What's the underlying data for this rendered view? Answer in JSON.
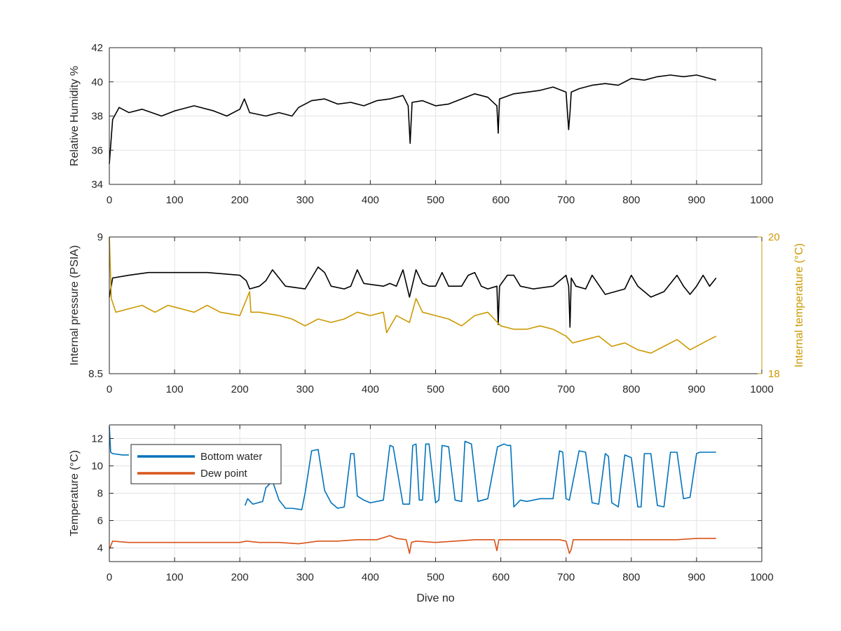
{
  "chart_data": [
    {
      "type": "line",
      "title": "",
      "xlabel": "",
      "ylabel": "Relative Humidity %",
      "xlim": [
        0,
        1000
      ],
      "ylim": [
        34,
        42
      ],
      "xticks": [
        0,
        100,
        200,
        300,
        400,
        500,
        600,
        700,
        800,
        900,
        1000
      ],
      "yticks": [
        34,
        36,
        38,
        40,
        42
      ],
      "xtick_labels": [
        "0",
        "100",
        "200",
        "300",
        "400",
        "500",
        "600",
        "700",
        "800",
        "900",
        "1000"
      ],
      "ytick_labels": [
        "34",
        "36",
        "38",
        "40",
        "42"
      ],
      "grid": true,
      "series": [
        {
          "color": "#000000",
          "x": [
            0,
            5,
            15,
            30,
            50,
            80,
            100,
            130,
            160,
            180,
            200,
            207,
            215,
            240,
            260,
            280,
            290,
            310,
            330,
            350,
            370,
            390,
            410,
            430,
            450,
            458,
            461,
            464,
            480,
            500,
            520,
            540,
            560,
            580,
            594,
            596,
            598,
            620,
            640,
            660,
            680,
            700,
            704,
            706,
            708,
            720,
            740,
            760,
            780,
            800,
            820,
            840,
            860,
            880,
            900,
            920,
            930
          ],
          "y": [
            35.2,
            37.8,
            38.5,
            38.2,
            38.4,
            38.0,
            38.3,
            38.6,
            38.3,
            38.0,
            38.4,
            39.0,
            38.2,
            38.0,
            38.2,
            38.0,
            38.5,
            38.9,
            39.0,
            38.7,
            38.8,
            38.6,
            38.9,
            39.0,
            39.2,
            38.6,
            36.4,
            38.8,
            38.9,
            38.6,
            38.7,
            39.0,
            39.3,
            39.1,
            38.6,
            37.0,
            39.0,
            39.3,
            39.4,
            39.5,
            39.7,
            39.4,
            37.2,
            38.2,
            39.4,
            39.6,
            39.8,
            39.9,
            39.8,
            40.2,
            40.1,
            40.3,
            40.4,
            40.3,
            40.4,
            40.2,
            40.1
          ]
        }
      ]
    },
    {
      "type": "line",
      "title": "",
      "xlabel": "",
      "ylabel": "Internal pressure (PSIA)",
      "ylabel_right": "Internal temperature (°C)",
      "xlim": [
        0,
        1000
      ],
      "ylim": [
        8.5,
        9
      ],
      "ylim_right": [
        18,
        20
      ],
      "xticks": [
        0,
        100,
        200,
        300,
        400,
        500,
        600,
        700,
        800,
        900,
        1000
      ],
      "yticks": [
        8.5,
        9
      ],
      "yticks_right": [
        18,
        20
      ],
      "xtick_labels": [
        "0",
        "100",
        "200",
        "300",
        "400",
        "500",
        "600",
        "700",
        "800",
        "900",
        "1000"
      ],
      "ytick_labels": [
        "8.5",
        "9"
      ],
      "ytick_labels_right": [
        "18",
        "20"
      ],
      "grid": true,
      "series": [
        {
          "axis": "left",
          "color": "#000000",
          "x": [
            0,
            5,
            30,
            60,
            100,
            150,
            200,
            210,
            215,
            230,
            240,
            250,
            260,
            270,
            300,
            310,
            320,
            330,
            340,
            360,
            370,
            380,
            390,
            420,
            430,
            440,
            450,
            460,
            470,
            480,
            490,
            500,
            510,
            520,
            540,
            550,
            560,
            570,
            580,
            594,
            596,
            598,
            610,
            620,
            630,
            650,
            680,
            700,
            704,
            706,
            708,
            715,
            730,
            740,
            760,
            790,
            800,
            810,
            830,
            840,
            850,
            870,
            880,
            890,
            900,
            910,
            920,
            930
          ],
          "y": [
            8.78,
            8.85,
            8.86,
            8.87,
            8.87,
            8.87,
            8.86,
            8.84,
            8.81,
            8.82,
            8.84,
            8.88,
            8.85,
            8.82,
            8.81,
            8.85,
            8.89,
            8.87,
            8.82,
            8.81,
            8.82,
            8.88,
            8.83,
            8.82,
            8.83,
            8.82,
            8.88,
            8.78,
            8.88,
            8.83,
            8.82,
            8.82,
            8.87,
            8.82,
            8.82,
            8.86,
            8.87,
            8.82,
            8.81,
            8.82,
            8.68,
            8.82,
            8.86,
            8.86,
            8.82,
            8.81,
            8.82,
            8.86,
            8.82,
            8.67,
            8.85,
            8.82,
            8.81,
            8.86,
            8.79,
            8.81,
            8.86,
            8.82,
            8.78,
            8.79,
            8.8,
            8.86,
            8.82,
            8.79,
            8.82,
            8.86,
            8.82,
            8.85
          ]
        },
        {
          "axis": "right",
          "color": "#CC9900",
          "x": [
            0,
            3,
            10,
            30,
            50,
            70,
            90,
            110,
            130,
            150,
            170,
            200,
            215,
            217,
            230,
            260,
            280,
            300,
            320,
            340,
            360,
            380,
            400,
            420,
            425,
            440,
            460,
            470,
            480,
            500,
            520,
            540,
            560,
            580,
            600,
            620,
            640,
            660,
            680,
            700,
            710,
            730,
            750,
            770,
            790,
            810,
            830,
            850,
            870,
            890,
            910,
            930
          ],
          "y": [
            20.0,
            19.1,
            18.9,
            18.95,
            19.0,
            18.9,
            19.0,
            18.95,
            18.9,
            19.0,
            18.9,
            18.85,
            19.2,
            18.9,
            18.9,
            18.85,
            18.8,
            18.7,
            18.8,
            18.75,
            18.8,
            18.9,
            18.85,
            18.9,
            18.6,
            18.85,
            18.75,
            19.1,
            18.9,
            18.85,
            18.8,
            18.7,
            18.85,
            18.9,
            18.7,
            18.65,
            18.65,
            18.7,
            18.65,
            18.55,
            18.45,
            18.5,
            18.55,
            18.4,
            18.45,
            18.35,
            18.3,
            18.4,
            18.5,
            18.35,
            18.45,
            18.55
          ]
        }
      ]
    },
    {
      "type": "line",
      "title": "",
      "xlabel": "Dive no",
      "ylabel": "Temperature (°C)",
      "xlim": [
        0,
        1000
      ],
      "ylim": [
        3,
        13
      ],
      "xticks": [
        0,
        100,
        200,
        300,
        400,
        500,
        600,
        700,
        800,
        900,
        1000
      ],
      "yticks": [
        4,
        6,
        8,
        10,
        12
      ],
      "xtick_labels": [
        "0",
        "100",
        "200",
        "300",
        "400",
        "500",
        "600",
        "700",
        "800",
        "900",
        "1000"
      ],
      "ytick_labels": [
        "4",
        "6",
        "8",
        "10",
        "12"
      ],
      "grid": true,
      "legend": "upper-left",
      "series": [
        {
          "name": "Bottom water",
          "color": "#0072BD",
          "x": [
            0,
            2,
            5,
            20,
            30,
            null,
            208,
            212,
            220,
            235,
            240,
            250,
            260,
            270,
            280,
            295,
            300,
            310,
            320,
            330,
            340,
            350,
            360,
            370,
            375,
            380,
            390,
            400,
            420,
            430,
            435,
            450,
            460,
            465,
            470,
            475,
            480,
            485,
            490,
            500,
            505,
            510,
            520,
            530,
            540,
            545,
            555,
            565,
            580,
            595,
            605,
            610,
            615,
            620,
            630,
            640,
            660,
            680,
            690,
            695,
            700,
            705,
            720,
            730,
            740,
            750,
            760,
            765,
            770,
            780,
            790,
            800,
            810,
            815,
            820,
            830,
            840,
            850,
            860,
            870,
            880,
            890,
            900,
            905,
            910,
            920,
            930
          ],
          "y": [
            12.9,
            11.0,
            10.9,
            10.8,
            10.8,
            null,
            7.1,
            7.6,
            7.2,
            7.4,
            8.4,
            8.9,
            7.5,
            6.9,
            6.9,
            6.8,
            8.0,
            11.1,
            11.2,
            8.2,
            7.3,
            6.9,
            7.0,
            10.9,
            10.9,
            7.8,
            7.5,
            7.3,
            7.5,
            11.5,
            11.4,
            7.2,
            7.2,
            11.5,
            11.6,
            7.5,
            7.5,
            11.6,
            11.6,
            7.3,
            7.5,
            11.5,
            11.4,
            7.5,
            7.4,
            11.8,
            11.6,
            7.4,
            7.6,
            11.4,
            11.6,
            11.5,
            11.5,
            7.0,
            7.5,
            7.4,
            7.6,
            7.6,
            11.1,
            11.0,
            7.6,
            7.5,
            11.1,
            11.0,
            7.3,
            7.2,
            10.9,
            10.7,
            7.3,
            7.0,
            10.8,
            10.6,
            7.0,
            7.0,
            10.9,
            10.9,
            7.1,
            7.0,
            11.0,
            11.0,
            7.6,
            7.7,
            10.9,
            11.0,
            11.0,
            11.0,
            11.0
          ]
        },
        {
          "name": "Dew point",
          "color": "#D95319",
          "x": [
            0,
            5,
            30,
            60,
            100,
            150,
            200,
            210,
            230,
            260,
            290,
            320,
            350,
            380,
            410,
            430,
            440,
            455,
            460,
            463,
            470,
            500,
            530,
            560,
            590,
            594,
            597,
            600,
            630,
            660,
            690,
            700,
            705,
            708,
            711,
            720,
            750,
            780,
            810,
            840,
            870,
            900,
            930
          ],
          "y": [
            3.9,
            4.5,
            4.4,
            4.4,
            4.4,
            4.4,
            4.4,
            4.5,
            4.4,
            4.4,
            4.3,
            4.5,
            4.5,
            4.6,
            4.6,
            4.9,
            4.7,
            4.6,
            3.6,
            4.4,
            4.5,
            4.4,
            4.5,
            4.6,
            4.6,
            3.8,
            4.6,
            4.6,
            4.6,
            4.6,
            4.6,
            4.5,
            3.6,
            3.9,
            4.6,
            4.6,
            4.6,
            4.6,
            4.6,
            4.6,
            4.6,
            4.7,
            4.7
          ]
        }
      ]
    }
  ]
}
